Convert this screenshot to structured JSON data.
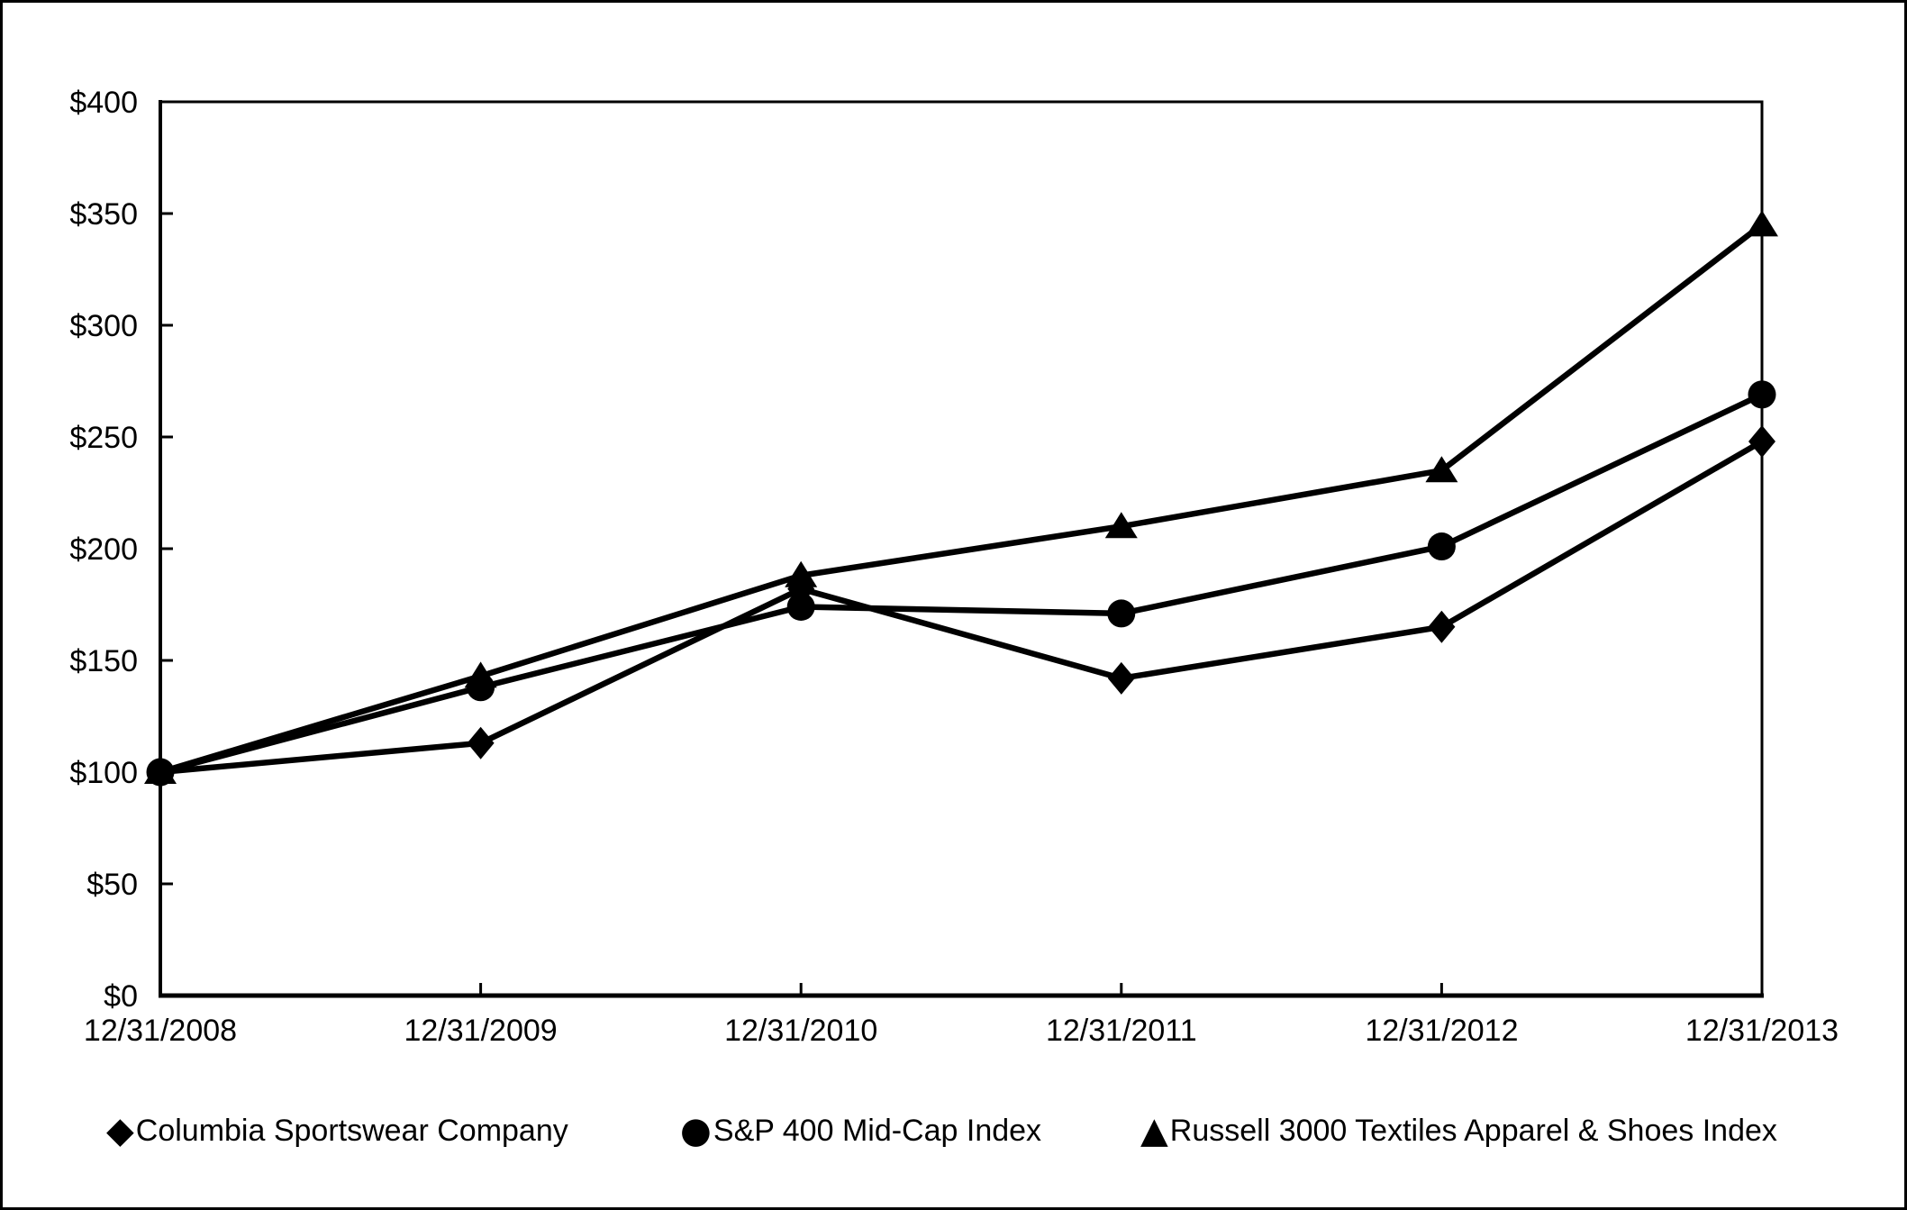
{
  "chart_data": {
    "type": "line",
    "title": "",
    "categories": [
      "12/31/2008",
      "12/31/2009",
      "12/31/2010",
      "12/31/2011",
      "12/31/2012",
      "12/31/2013"
    ],
    "series": [
      {
        "name": "Columbia Sportswear Company",
        "marker": "diamond",
        "marker_glyph": "◆",
        "values": [
          100,
          113,
          182,
          142,
          165,
          248
        ]
      },
      {
        "name": "S&P 400 Mid-Cap Index",
        "marker": "circle",
        "marker_glyph": "●",
        "values": [
          100,
          138,
          174,
          171,
          201,
          269
        ]
      },
      {
        "name": "Russell 3000 Textiles Apparel & Shoes Index",
        "marker": "triangle",
        "marker_glyph": "▲",
        "values": [
          100,
          143,
          188,
          210,
          235,
          345
        ]
      }
    ],
    "y_axis": {
      "min": 0,
      "max": 400,
      "step": 50,
      "tick_labels": [
        "$0",
        "$50",
        "$100",
        "$150",
        "$200",
        "$250",
        "$300",
        "$350",
        "$400"
      ]
    },
    "x_axis": {
      "tick_labels": [
        "12/31/2008",
        "12/31/2009",
        "12/31/2010",
        "12/31/2011",
        "12/31/2012",
        "12/31/2013"
      ]
    },
    "legend_position": "bottom",
    "grid": false,
    "line_color": "#000000",
    "background_color": "#ffffff"
  }
}
